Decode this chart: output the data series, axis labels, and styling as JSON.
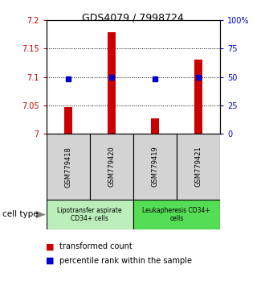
{
  "title": "GDS4079 / 7998724",
  "samples": [
    "GSM779418",
    "GSM779420",
    "GSM779419",
    "GSM779421"
  ],
  "transformed_counts": [
    7.047,
    7.178,
    7.027,
    7.13
  ],
  "percentile_ranks": [
    48,
    50,
    48,
    50
  ],
  "ylim_left": [
    7.0,
    7.2
  ],
  "ylim_right": [
    0,
    100
  ],
  "yticks_left": [
    7.0,
    7.05,
    7.1,
    7.15,
    7.2
  ],
  "yticks_right": [
    0,
    25,
    50,
    75,
    100
  ],
  "ytick_labels_left": [
    "7",
    "7.05",
    "7.1",
    "7.15",
    "7.2"
  ],
  "ytick_labels_right": [
    "0",
    "25",
    "50",
    "75",
    "100%"
  ],
  "hlines": [
    7.05,
    7.1,
    7.15
  ],
  "bar_color": "#cc0000",
  "dot_color": "#0000cc",
  "group_labels": [
    "Lipotransfer aspirate\nCD34+ cells",
    "Leukapheresis CD34+\ncells"
  ],
  "group_colors": [
    "#bbeebb",
    "#55dd55"
  ],
  "legend_bar_label": "transformed count",
  "legend_dot_label": "percentile rank within the sample",
  "cell_type_label": "cell type",
  "bar_width": 0.18,
  "x_positions": [
    0,
    1,
    2,
    3
  ],
  "tick_label_color_left": "#cc0000",
  "tick_label_color_right": "#0000cc",
  "title_fontsize": 9,
  "axis_fontsize": 7,
  "sample_fontsize": 6,
  "group_fontsize": 5.5,
  "legend_fontsize": 7
}
